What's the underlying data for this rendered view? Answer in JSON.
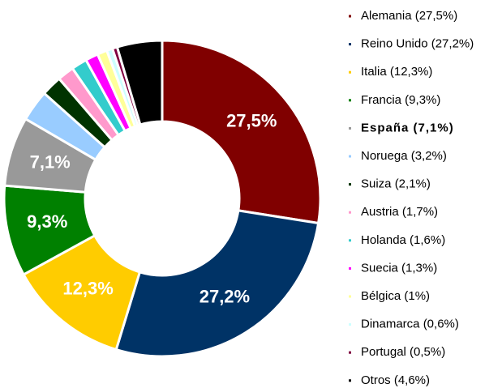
{
  "chart_data": {
    "type": "donut",
    "categories": [
      "Alemania (27,5%)",
      "Reino Unido (27,2%)",
      "Italia (12,3%)",
      "Francia (9,3%)",
      "España (7,1%)",
      "Noruega (3,2%)",
      "Suiza (2,1%)",
      "Austria (1,7%)",
      "Holanda (1,6%)",
      "Suecia (1,3%)",
      "Bélgica (1%)",
      "Dinamarca (0,6%)",
      "Portugal (0,5%)",
      "Otros (4,6%)"
    ],
    "values": [
      27.5,
      27.2,
      12.3,
      9.3,
      7.1,
      3.2,
      2.1,
      1.7,
      1.6,
      1.3,
      1,
      0.6,
      0.5,
      4.6
    ],
    "value_labels": [
      "27,5%",
      "27,2%",
      "12,3%",
      "9,3%",
      "7,1%",
      null,
      null,
      null,
      null,
      null,
      null,
      null,
      null,
      null
    ],
    "colors": [
      "#800000",
      "#003366",
      "#ffcc00",
      "#008000",
      "#999999",
      "#99ccff",
      "#003300",
      "#ff99cc",
      "#33cccc",
      "#ff00ff",
      "#ffff99",
      "#ccffff",
      "#800040",
      "#000000"
    ],
    "highlight": 4,
    "legend": "right"
  }
}
